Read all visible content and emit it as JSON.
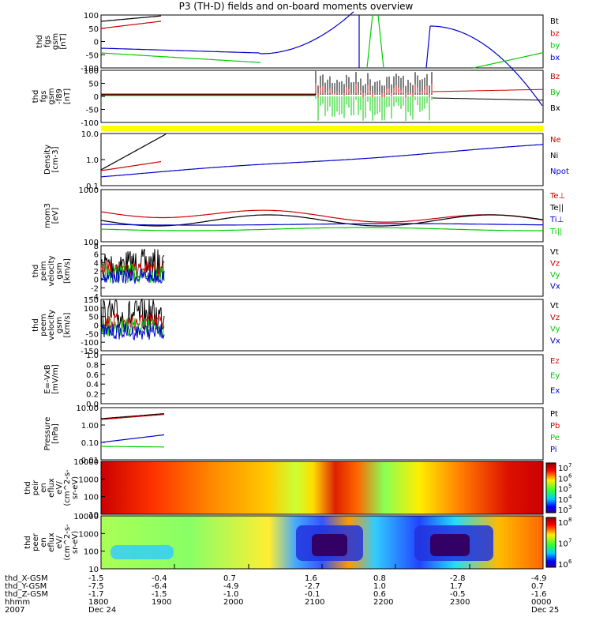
{
  "title": "P3 (TH-D) fields and on-board moments overview",
  "colors": {
    "black": "#000000",
    "red": "#cc0000",
    "green": "#00cc00",
    "blue": "#0000cc",
    "yellow": "#ffff00"
  },
  "chart_data": [
    {
      "type": "line",
      "ylabel": [
        "thd",
        "fgs",
        "gsm",
        "[nT]"
      ],
      "yticks": [
        "100",
        "50",
        "0",
        "-50",
        "-100"
      ],
      "ylim": [
        -100,
        100
      ],
      "legend": [
        {
          "name": "Bt",
          "color": "#000000"
        },
        {
          "name": "bz",
          "color": "#cc0000"
        },
        {
          "name": "by",
          "color": "#00cc00"
        },
        {
          "name": "bx",
          "color": "#0000cc"
        }
      ]
    },
    {
      "type": "line",
      "ylabel": [
        "thd",
        "fgs",
        "gsm",
        "-f89",
        "[nT]"
      ],
      "yticks": [
        "100",
        "50",
        "0",
        "-50",
        "-100"
      ],
      "ylim": [
        -120,
        100
      ],
      "legend": [
        {
          "name": "Bz",
          "color": "#cc0000"
        },
        {
          "name": "By",
          "color": "#00cc00"
        },
        {
          "name": "Bx",
          "color": "#000000"
        }
      ]
    },
    {
      "type": "line",
      "ylabel": [
        "Density",
        "[cm-3]"
      ],
      "yticks": [
        "10.0",
        "1.0",
        "0.1"
      ],
      "yscale": "log",
      "legend": [
        {
          "name": "Ne",
          "color": "#cc0000"
        },
        {
          "name": "Ni",
          "color": "#000000"
        },
        {
          "name": "Npot",
          "color": "#0000cc"
        }
      ]
    },
    {
      "type": "line",
      "ylabel": [
        "mom3",
        "[eV]"
      ],
      "yticks": [
        "1000",
        "100"
      ],
      "yscale": "log",
      "legend": [
        {
          "name": "Te⊥",
          "color": "#cc0000"
        },
        {
          "name": "Te||",
          "color": "#000000"
        },
        {
          "name": "Ti⊥",
          "color": "#0000cc"
        },
        {
          "name": "Ti||",
          "color": "#00cc00"
        }
      ]
    },
    {
      "type": "line",
      "ylabel": [
        "thd",
        "peim",
        "velocity",
        "gsm",
        "[km/s]"
      ],
      "yticks": [
        "8",
        "6",
        "4",
        "2",
        "0",
        "-2",
        "-4"
      ],
      "legend": [
        {
          "name": "Vt",
          "color": "#000000"
        },
        {
          "name": "Vz",
          "color": "#cc0000"
        },
        {
          "name": "Vy",
          "color": "#00cc00"
        },
        {
          "name": "Vx",
          "color": "#0000cc"
        }
      ]
    },
    {
      "type": "line",
      "ylabel": [
        "thd",
        "peem",
        "velocity",
        "gsm",
        "[km/s]"
      ],
      "yticks": [
        "150",
        "100",
        "50",
        "0",
        "-50",
        "-100",
        "-150"
      ],
      "legend": [
        {
          "name": "Vt",
          "color": "#000000"
        },
        {
          "name": "Vz",
          "color": "#cc0000"
        },
        {
          "name": "Vy",
          "color": "#00cc00"
        },
        {
          "name": "Vx",
          "color": "#0000cc"
        }
      ]
    },
    {
      "type": "line",
      "ylabel": [
        "E=-VxB",
        "[mV/m]"
      ],
      "yticks": [
        "1.0",
        "0.8",
        "0.6",
        "0.4",
        "0.2",
        "0.0"
      ],
      "legend": [
        {
          "name": "Ez",
          "color": "#cc0000"
        },
        {
          "name": "Ey",
          "color": "#00cc00"
        },
        {
          "name": "Ex",
          "color": "#0000cc"
        }
      ]
    },
    {
      "type": "line",
      "ylabel": [
        "Pressure",
        "[nPa]"
      ],
      "yticks": [
        "10.00",
        "1.00",
        "0.10",
        "0.01"
      ],
      "yscale": "log",
      "legend": [
        {
          "name": "Pt",
          "color": "#000000"
        },
        {
          "name": "Pb",
          "color": "#cc0000"
        },
        {
          "name": "Pe",
          "color": "#00cc00"
        },
        {
          "name": "Pi",
          "color": "#0000cc"
        }
      ]
    },
    {
      "type": "heatmap",
      "ylabel": [
        "thd",
        "peir",
        "en",
        "eflux",
        "eV/",
        "(cm^2-s-",
        "sr-eV)"
      ],
      "yticks": [
        "10000",
        "1000",
        "100",
        "10"
      ],
      "colorbar_ticks": [
        "10",
        "10",
        "10",
        "10",
        "10"
      ],
      "colorbar_exp": [
        "7",
        "6",
        "5",
        "4",
        "3"
      ]
    },
    {
      "type": "heatmap",
      "ylabel": [
        "thd",
        "peer",
        "en",
        "eflux",
        "eV/",
        "(cm^2-s-",
        "sr-eV)"
      ],
      "yticks": [
        "10000",
        "1000",
        "100",
        "10"
      ],
      "colorbar_ticks": [
        "10",
        "10",
        "10"
      ],
      "colorbar_exp": [
        "8",
        "7",
        "6"
      ]
    }
  ],
  "bottom_axis": {
    "row_labels": [
      "thd_X-GSM",
      "thd_Y-GSM",
      "thd_Z-GSM",
      "hhmm",
      "2007"
    ],
    "columns": [
      {
        "vals": [
          "-1.5",
          "-7.5",
          "-1.7",
          "1800",
          "Dec 24"
        ]
      },
      {
        "vals": [
          "-0.4",
          "-6.4",
          "-1.5",
          "1900",
          ""
        ]
      },
      {
        "vals": [
          "0.7",
          "-4.9",
          "-1.0",
          "2000",
          ""
        ]
      },
      {
        "vals": [
          "1.6",
          "-2.7",
          "-0.1",
          "2100",
          ""
        ]
      },
      {
        "vals": [
          "0.8",
          "1.0",
          "0.6",
          "2200",
          ""
        ]
      },
      {
        "vals": [
          "-2.8",
          "1.7",
          "-0.5",
          "2300",
          ""
        ]
      },
      {
        "vals": [
          "-4.9",
          "0.7",
          "-1.6",
          "0000",
          "Dec 25"
        ]
      }
    ]
  }
}
